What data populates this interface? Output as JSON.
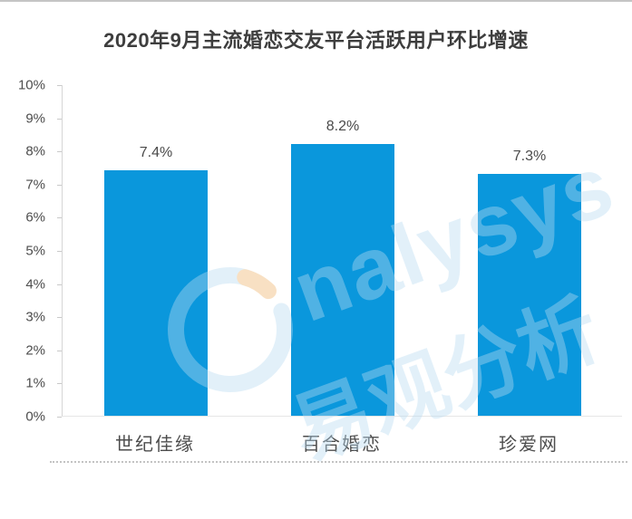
{
  "page": {
    "top_border_color": "#c5c5c5"
  },
  "chart_data": {
    "type": "bar",
    "title": "2020年9月主流婚恋交友平台活跃用户环比增速",
    "categories": [
      "世纪佳缘",
      "百合婚恋",
      "珍爱网"
    ],
    "values": [
      7.4,
      8.2,
      7.3
    ],
    "value_labels": [
      "7.4%",
      "8.2%",
      "7.3%"
    ],
    "ylabel": "",
    "xlabel": "",
    "ylim": [
      0,
      10
    ],
    "ytick_step": 1,
    "ytick_labels": [
      "0%",
      "1%",
      "2%",
      "3%",
      "4%",
      "5%",
      "6%",
      "7%",
      "8%",
      "9%",
      "10%"
    ],
    "bar_color": "#0a97dc",
    "grid": false,
    "legend": false
  },
  "watermark": {
    "latin": "nalysys",
    "chinese": "易观分析",
    "ring_color": "#b9dcf2",
    "accent_color": "#f0b46a"
  },
  "colors": {
    "bar": "#0a97dc",
    "title_text": "#3e3e3e",
    "axis_text": "#4d4d4d",
    "axis_line": "#d6d6d6",
    "baseline": "#e6e6e6"
  }
}
